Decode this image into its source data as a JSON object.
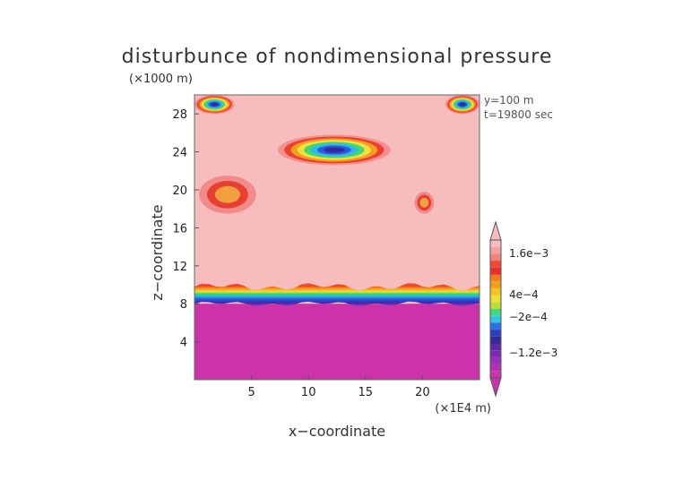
{
  "chart_data": {
    "type": "heatmap",
    "title": "disturbunce of nondimensional pressure",
    "y_unit": "(×1000 m)",
    "x_unit": "(×1E4 m)",
    "xlabel": "x−coordinate",
    "ylabel": "z−coordinate",
    "info": [
      "y=100 m",
      "t=19800 sec"
    ],
    "xlim": [
      0,
      25
    ],
    "ylim": [
      0,
      30
    ],
    "x_ticks": [
      "5",
      "10",
      "15",
      "20"
    ],
    "y_ticks": [
      "4",
      "8",
      "12",
      "16",
      "20",
      "24",
      "28"
    ],
    "colorbar_labels": [
      "1.6e−3",
      "4e−4",
      "−2e−4",
      "−1.2e−3"
    ],
    "background_value_color": "#f7bcbc",
    "low_layer_color": "#cc33aa",
    "features": [
      {
        "kind": "low_layer",
        "z_top": 8.0
      },
      {
        "kind": "gradient_band",
        "z_bottom": 8.0,
        "z_top": 9.8
      },
      {
        "kind": "blob",
        "name": "upper-cell",
        "x": [
          7.3,
          17.2
        ],
        "z": [
          22.6,
          25.8
        ]
      },
      {
        "kind": "blob",
        "name": "corner-left",
        "x": [
          0,
          3.5
        ],
        "z": [
          28.0,
          30
        ]
      },
      {
        "kind": "blob",
        "name": "corner-right",
        "x": [
          22.0,
          25
        ],
        "z": [
          28.0,
          30
        ]
      },
      {
        "kind": "patch",
        "name": "left-patch",
        "x": [
          0.4,
          5.4
        ],
        "z": [
          17.5,
          21.5
        ]
      },
      {
        "kind": "patch",
        "name": "right-patch",
        "x": [
          19.3,
          21.0
        ],
        "z": [
          17.5,
          19.8
        ]
      }
    ]
  }
}
